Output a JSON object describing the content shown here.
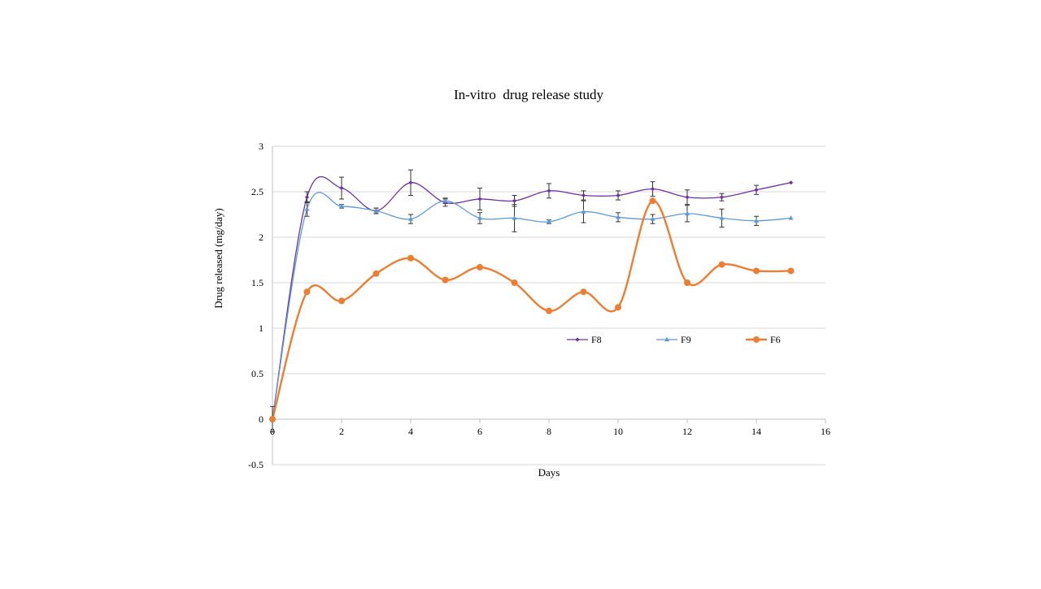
{
  "chart_data": {
    "type": "line",
    "title": "In-vitro  drug release study",
    "xlabel": "Days",
    "ylabel": "Drug released (mg/day)",
    "xlim": [
      0,
      16
    ],
    "ylim": [
      -0.5,
      3
    ],
    "xticks": [
      0,
      2,
      4,
      6,
      8,
      10,
      12,
      14,
      16
    ],
    "yticks": [
      -0.5,
      0,
      0.5,
      1,
      1.5,
      2,
      2.5,
      3
    ],
    "x_tick_labels": [
      "0",
      "2",
      "4",
      "6",
      "8",
      "10",
      "12",
      "14",
      "16"
    ],
    "y_tick_labels": [
      "-0.5",
      "0",
      "0.5",
      "1",
      "1.5",
      "2",
      "2.5",
      "3"
    ],
    "grid": "horizontal",
    "legend_position": "inside-right",
    "series": [
      {
        "name": "F8",
        "color": "#7030a0",
        "marker": "diamond",
        "smooth": true,
        "x": [
          0,
          1,
          2,
          3,
          4,
          5,
          6,
          7,
          8,
          9,
          10,
          11,
          12,
          13,
          14,
          15
        ],
        "y": [
          0,
          2.44,
          2.54,
          2.29,
          2.6,
          2.38,
          2.42,
          2.4,
          2.51,
          2.46,
          2.46,
          2.53,
          2.44,
          2.44,
          2.52,
          2.6
        ],
        "err": [
          0.02,
          0.06,
          0.12,
          0.03,
          0.14,
          0.04,
          0.12,
          0.06,
          0.08,
          0.05,
          0.05,
          0.08,
          0.08,
          0.04,
          0.05,
          0
        ]
      },
      {
        "name": "F9",
        "color": "#5b9bd5",
        "marker": "triangle",
        "smooth": true,
        "x": [
          0,
          1,
          2,
          3,
          4,
          5,
          6,
          7,
          8,
          9,
          10,
          11,
          12,
          13,
          14,
          15
        ],
        "y": [
          0,
          2.31,
          2.34,
          2.29,
          2.2,
          2.4,
          2.21,
          2.21,
          2.17,
          2.28,
          2.22,
          2.2,
          2.26,
          2.21,
          2.18,
          2.21
        ],
        "err": [
          0.14,
          0.08,
          0.02,
          0.03,
          0.05,
          0.03,
          0.06,
          0.15,
          0.02,
          0.12,
          0.05,
          0.05,
          0.09,
          0.1,
          0.05,
          0
        ]
      },
      {
        "name": "F6",
        "color": "#ed7d31",
        "marker": "circle",
        "smooth": true,
        "x": [
          0,
          1,
          2,
          3,
          4,
          5,
          6,
          7,
          8,
          9,
          10,
          11,
          12,
          13,
          14,
          15
        ],
        "y": [
          0,
          1.4,
          1.3,
          1.6,
          1.77,
          1.53,
          1.67,
          1.5,
          1.19,
          1.4,
          1.23,
          2.4,
          1.5,
          1.7,
          1.63,
          1.63
        ]
      }
    ]
  }
}
